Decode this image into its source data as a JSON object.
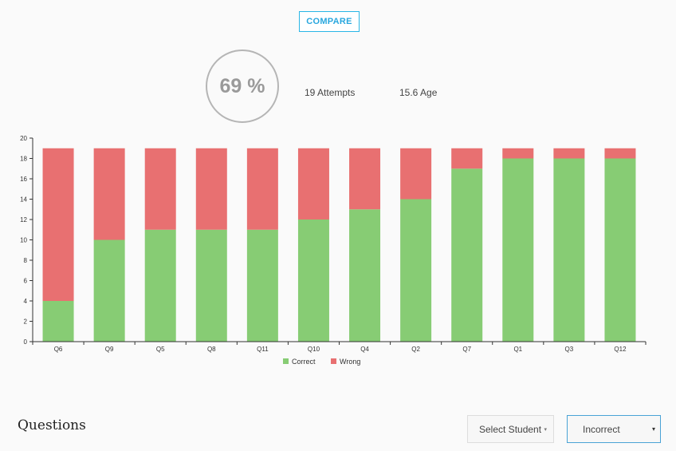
{
  "header": {
    "compare_label": "COMPARE",
    "score": "69 %",
    "attempts": "19 Attempts",
    "age": "15.6 Age"
  },
  "colors": {
    "correct": "#87cc74",
    "wrong": "#e87071",
    "accent": "#29a7de"
  },
  "chart_data": {
    "type": "bar",
    "stacked": true,
    "categories": [
      "Q6",
      "Q9",
      "Q5",
      "Q8",
      "Q11",
      "Q10",
      "Q4",
      "Q2",
      "Q7",
      "Q1",
      "Q3",
      "Q12"
    ],
    "series": [
      {
        "name": "Correct",
        "values": [
          4,
          10,
          11,
          11,
          11,
          12,
          13,
          14,
          17,
          18,
          18,
          18
        ]
      },
      {
        "name": "Wrong",
        "values": [
          15,
          9,
          8,
          8,
          8,
          7,
          6,
          5,
          2,
          1,
          1,
          1
        ]
      }
    ],
    "ylim": [
      0,
      20
    ],
    "yticks": [
      0,
      2,
      4,
      6,
      8,
      10,
      12,
      14,
      16,
      18,
      20
    ],
    "legend": [
      "Correct",
      "Wrong"
    ],
    "legend_position": "bottom"
  },
  "questions": {
    "title": "Questions",
    "student_select": "Select Student",
    "student_arrow": "▾",
    "filter_select": "Incorrect",
    "filter_arrow": "▾"
  }
}
